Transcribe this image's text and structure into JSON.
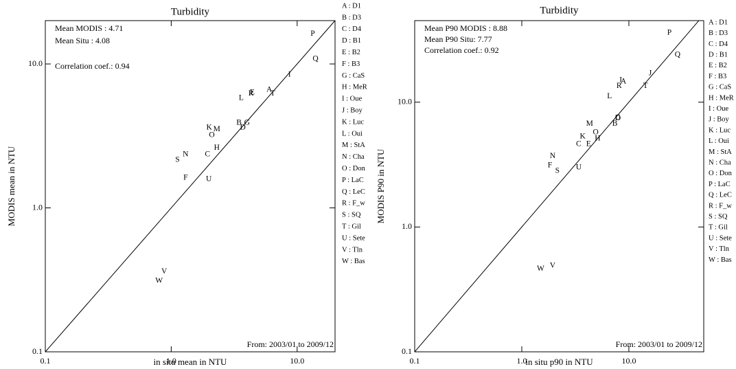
{
  "chart_data": [
    {
      "type": "scatter",
      "title": "Turbidity",
      "x_label": "in situ mean in  NTU",
      "y_label": "MODIS mean in  NTU",
      "log_x": true,
      "log_y": true,
      "xlim": [
        0.1,
        20
      ],
      "ylim": [
        0.1,
        20
      ],
      "xticks": [
        0.1,
        {
          "value": 1,
          "label": "1.0"
        },
        {
          "value": 10,
          "label": "10.0"
        }
      ],
      "yticks": [
        0.1,
        {
          "value": 1,
          "label": "1.0"
        },
        {
          "value": 10,
          "label": "10.0"
        }
      ],
      "annotations": [
        "Mean MODIS : 4.71",
        "Mean Situ : 4.08",
        "Correlation coef.: 0.94"
      ],
      "footnote": "From: 2003/01 to 2009/12",
      "labels": [
        "P",
        "Q",
        "I",
        "A",
        "T",
        "R",
        "E",
        "L",
        "B",
        "G",
        "D",
        "K",
        "M",
        "O",
        "H",
        "C",
        "N",
        "S",
        "F",
        "U",
        "V",
        "W"
      ],
      "x": [
        13.3,
        14.0,
        8.7,
        6.0,
        6.4,
        4.3,
        4.4,
        3.6,
        3.45,
        4.0,
        3.7,
        2.0,
        2.3,
        2.1,
        2.3,
        1.94,
        1.3,
        1.12,
        1.3,
        1.99,
        0.88,
        0.8
      ],
      "values": [
        16.2,
        10.8,
        8.4,
        6.6,
        6.2,
        6.2,
        6.3,
        5.8,
        3.9,
        3.9,
        3.6,
        3.6,
        3.5,
        3.2,
        2.6,
        2.35,
        2.35,
        2.15,
        1.62,
        1.58,
        0.36,
        0.31
      ],
      "legend": [
        "A : D1",
        "B : D3",
        "C : D4",
        "D : B1",
        "E : B2",
        "F : B3",
        "G : CaS",
        "H : MeR",
        "I : Oue",
        "J : Boy",
        "K : Luc",
        "L : Oui",
        "M : StA",
        "N : Cha",
        "O : Don",
        "P : LaC",
        "Q : LeC",
        "R : F_w",
        "S : SQ",
        "T : Gil",
        "U : Sete",
        "V : Tln",
        "W : Bas"
      ]
    },
    {
      "type": "scatter",
      "title": "Turbidity",
      "x_label": "in situ p90 in  NTU",
      "y_label": "MODIS P90 in  NTU",
      "log_x": true,
      "log_y": true,
      "xlim": [
        0.1,
        50
      ],
      "ylim": [
        0.1,
        45
      ],
      "xticks": [
        0.1,
        {
          "value": 1,
          "label": "1.0"
        },
        {
          "value": 10,
          "label": "10.0"
        }
      ],
      "yticks": [
        0.1,
        {
          "value": 1,
          "label": "1.0"
        },
        {
          "value": 10,
          "label": "10.0"
        }
      ],
      "annotations": [
        "Mean P90 MODIS : 8.88",
        "Mean P90 Situ: 7.77",
        "Correlation coef.: 0.92"
      ],
      "footnote": "From: 2003/01 to 2009/12",
      "labels": [
        "P",
        "Q",
        "J",
        "A",
        "I",
        "T",
        "R",
        "L",
        "D",
        "G",
        "B",
        "M",
        "O",
        "K",
        "H",
        "C",
        "E",
        "N",
        "F",
        "S",
        "U",
        "V",
        "W"
      ],
      "x": [
        23.9,
        28.5,
        15.8,
        8.9,
        8.4,
        14.3,
        8.1,
        6.6,
        7.9,
        7.9,
        7.4,
        4.3,
        4.9,
        3.7,
        5.1,
        3.4,
        4.2,
        1.94,
        1.83,
        2.15,
        3.4,
        1.94,
        1.5
      ],
      "values": [
        35.9,
        23.9,
        17.0,
        14.6,
        15.0,
        13.4,
        13.4,
        11.1,
        7.4,
        7.5,
        6.7,
        6.7,
        5.7,
        5.3,
        5.1,
        4.6,
        4.6,
        3.7,
        3.1,
        2.8,
        3.0,
        0.49,
        0.46
      ],
      "legend": [
        "A : D1",
        "B : D3",
        "C : D4",
        "D : B1",
        "E : B2",
        "F : B3",
        "G : CaS",
        "H : MeR",
        "I : Oue",
        "J : Boy",
        "K : Luc",
        "L : Oui",
        "M : StA",
        "N : Cha",
        "O : Don",
        "P : LaC",
        "Q : LeC",
        "R : F_w",
        "S : SQ",
        "T : Gil",
        "U : Sete",
        "V : Tln",
        "W : Bas"
      ]
    }
  ]
}
